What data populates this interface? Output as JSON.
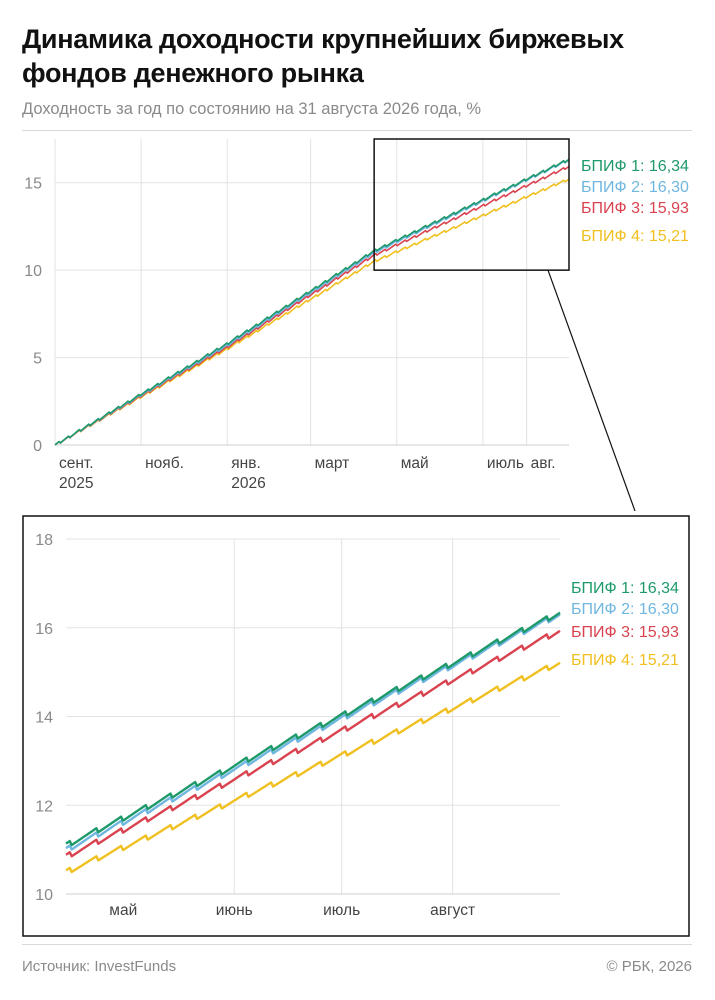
{
  "title": "Динамика доходности крупнейших биржевых фондов денежного рынка",
  "subtitle": "Доходность за год по состоянию на 31 августа 2026 года, %",
  "source": "Источник: InvestFunds",
  "copyright": "© РБК, 2026",
  "colors": {
    "bpif1": "#1e9a6a",
    "bpif2": "#6fb6e0",
    "bpif3": "#d9434f",
    "bpif4": "#f0c020",
    "grid": "#e3e3e3",
    "axis_text": "#8a8a8a"
  },
  "chart_data": [
    {
      "type": "line",
      "xlim": [
        "2025-09-01",
        "2026-08-31"
      ],
      "ylim": [
        0,
        17.5
      ],
      "grid": true,
      "x_ticks": [
        {
          "date": "2025-09-01",
          "lines": [
            "сент.",
            "2025"
          ]
        },
        {
          "date": "2025-11-01",
          "lines": [
            "нояб."
          ]
        },
        {
          "date": "2026-01-01",
          "lines": [
            "янв.",
            "2026"
          ]
        },
        {
          "date": "2026-03-01",
          "lines": [
            "март"
          ]
        },
        {
          "date": "2026-05-01",
          "lines": [
            "май"
          ]
        },
        {
          "date": "2026-07-01",
          "lines": [
            "июль"
          ]
        },
        {
          "date": "2026-08-01",
          "lines": [
            "авг."
          ]
        }
      ],
      "y_ticks": [
        0,
        5,
        10,
        15
      ],
      "zoom_box": {
        "x0": "2026-04-15",
        "x1": "2026-08-31",
        "y0": 10,
        "y1": 17.5
      },
      "series": [
        {
          "name": "БПИФ 1",
          "final_label": "16,34",
          "color_key": "bpif1",
          "points": [
            [
              "2025-09-01",
              0
            ],
            [
              "2026-01-01",
              5.8
            ],
            [
              "2026-04-15",
              11.1
            ],
            [
              "2026-08-31",
              16.34
            ]
          ]
        },
        {
          "name": "БПИФ 2",
          "final_label": "16,30",
          "color_key": "bpif2",
          "points": [
            [
              "2025-09-01",
              0
            ],
            [
              "2026-01-01",
              5.7
            ],
            [
              "2026-04-15",
              11.0
            ],
            [
              "2026-08-31",
              16.3
            ]
          ]
        },
        {
          "name": "БПИФ 3",
          "final_label": "15,93",
          "color_key": "bpif3",
          "points": [
            [
              "2025-09-01",
              0
            ],
            [
              "2026-01-01",
              5.6
            ],
            [
              "2026-04-15",
              10.85
            ],
            [
              "2026-08-31",
              15.93
            ]
          ]
        },
        {
          "name": "БПИФ 4",
          "final_label": "15,21",
          "color_key": "bpif4",
          "points": [
            [
              "2025-09-01",
              0
            ],
            [
              "2026-01-01",
              5.5
            ],
            [
              "2026-04-15",
              10.5
            ],
            [
              "2026-08-31",
              15.21
            ]
          ]
        }
      ]
    },
    {
      "type": "line",
      "xlim": [
        "2026-04-15",
        "2026-08-31"
      ],
      "ylim": [
        10,
        18
      ],
      "grid": true,
      "x_ticks": [
        {
          "date": "2026-05-01",
          "lines": [
            "май"
          ],
          "grid": false
        },
        {
          "date": "2026-06-01",
          "lines": [
            "июнь"
          ],
          "grid": true
        },
        {
          "date": "2026-07-01",
          "lines": [
            "июль"
          ],
          "grid": true
        },
        {
          "date": "2026-08-01",
          "lines": [
            "август"
          ],
          "grid": true
        }
      ],
      "y_ticks": [
        10,
        12,
        14,
        16,
        18
      ],
      "series": [
        {
          "name": "БПИФ 1",
          "final_label": "16,34",
          "color_key": "bpif1",
          "points": [
            [
              "2026-04-15",
              11.1
            ],
            [
              "2026-08-31",
              16.34
            ]
          ]
        },
        {
          "name": "БПИФ 2",
          "final_label": "16,30",
          "color_key": "bpif2",
          "points": [
            [
              "2026-04-15",
              11.0
            ],
            [
              "2026-08-31",
              16.3
            ]
          ]
        },
        {
          "name": "БПИФ 3",
          "final_label": "15,93",
          "color_key": "bpif3",
          "points": [
            [
              "2026-04-15",
              10.85
            ],
            [
              "2026-08-31",
              15.93
            ]
          ]
        },
        {
          "name": "БПИФ 4",
          "final_label": "15,21",
          "color_key": "bpif4",
          "points": [
            [
              "2026-04-15",
              10.5
            ],
            [
              "2026-08-31",
              15.21
            ]
          ]
        }
      ]
    }
  ]
}
